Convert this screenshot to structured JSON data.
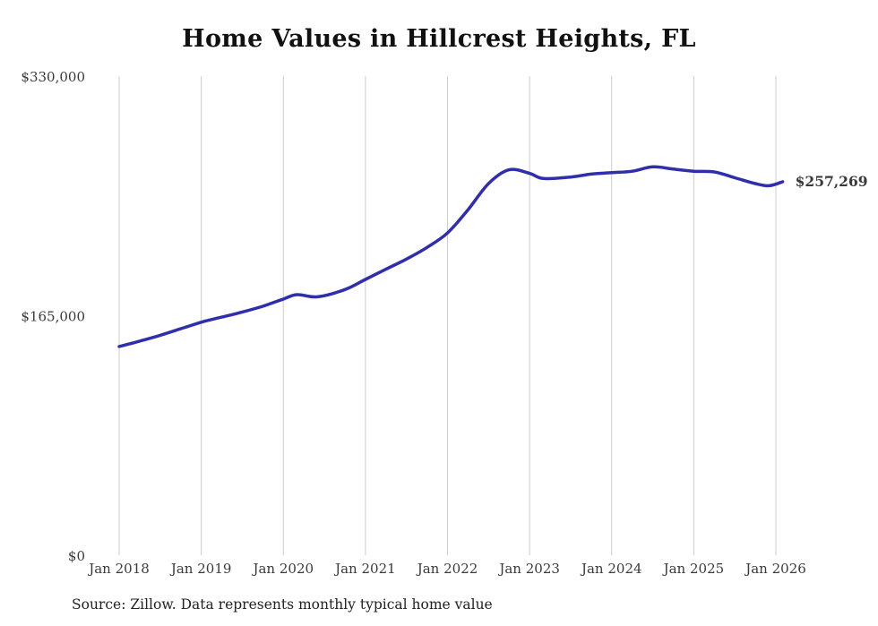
{
  "chart_data": {
    "type": "line",
    "title": "Home Values in Hillcrest Heights, FL",
    "source": "Source: Zillow. Data represents monthly typical home value",
    "end_label": "$257,269",
    "end_value": 257269,
    "line_color": "#2f2fae",
    "grid_color": "#cccccc",
    "xlabel": "",
    "ylabel": "",
    "ylim": [
      0,
      330000
    ],
    "grid": "vertical-only",
    "legend": "none",
    "y_ticks": [
      {
        "value": 330000,
        "label": "$330,000"
      },
      {
        "value": 165000,
        "label": "$165,000"
      },
      {
        "value": 0,
        "label": "$0"
      }
    ],
    "x_tick_labels": [
      "Jan 2018",
      "Jan 2019",
      "Jan 2020",
      "Jan 2021",
      "Jan 2022",
      "Jan 2023",
      "Jan 2024",
      "Jan 2025",
      "Jan 2026"
    ],
    "series": [
      {
        "name": "Typical home value (monthly)",
        "points_note": "each point is [months since Jan 2018, USD value]",
        "points": [
          [
            0,
            143800
          ],
          [
            3,
            147500
          ],
          [
            6,
            151500
          ],
          [
            9,
            156000
          ],
          [
            12,
            160500
          ],
          [
            15,
            164000
          ],
          [
            18,
            167500
          ],
          [
            21,
            171500
          ],
          [
            24,
            176500
          ],
          [
            26,
            179500
          ],
          [
            29,
            178000
          ],
          [
            33,
            183000
          ],
          [
            36,
            190000
          ],
          [
            39,
            197000
          ],
          [
            42,
            204000
          ],
          [
            45,
            212000
          ],
          [
            48,
            222000
          ],
          [
            51,
            238000
          ],
          [
            54,
            256000
          ],
          [
            57,
            265500
          ],
          [
            60,
            263000
          ],
          [
            62,
            259500
          ],
          [
            66,
            260500
          ],
          [
            69,
            262500
          ],
          [
            72,
            263500
          ],
          [
            75,
            264500
          ],
          [
            78,
            267500
          ],
          [
            81,
            266000
          ],
          [
            84,
            264500
          ],
          [
            87,
            264000
          ],
          [
            90,
            260000
          ],
          [
            93,
            256000
          ],
          [
            95,
            254500
          ],
          [
            97,
            257269
          ]
        ]
      }
    ]
  }
}
